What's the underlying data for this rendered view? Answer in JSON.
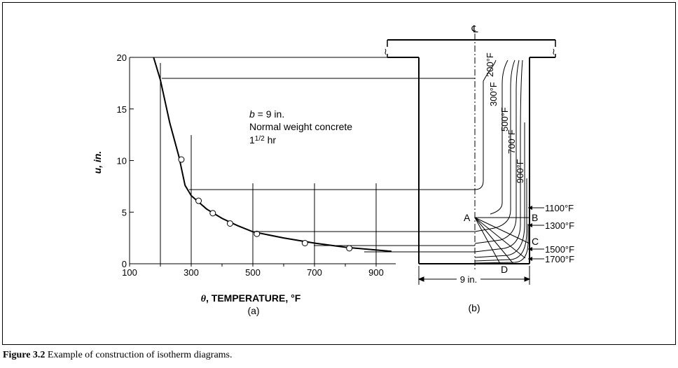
{
  "chart_data": {
    "type": "scatter",
    "title": "",
    "xlabel_symbol": "θ",
    "xlabel": ", TEMPERATURE, °F",
    "ylabel": "u, in.",
    "xlim": [
      100,
      900
    ],
    "ylim": [
      0,
      20
    ],
    "xticks": [
      "100",
      "300",
      "500",
      "700",
      "900"
    ],
    "yticks": [
      "0",
      "5",
      "10",
      "15",
      "20"
    ],
    "points": [
      {
        "x": 268,
        "y": 10.1
      },
      {
        "x": 324,
        "y": 6.1
      },
      {
        "x": 370,
        "y": 4.9
      },
      {
        "x": 426,
        "y": 3.9
      },
      {
        "x": 513,
        "y": 2.9
      },
      {
        "x": 669,
        "y": 2.0
      },
      {
        "x": 813,
        "y": 1.5
      }
    ],
    "curve": [
      {
        "x": 178,
        "y": 20
      },
      {
        "x": 200,
        "y": 17.8
      },
      {
        "x": 230,
        "y": 13.7
      },
      {
        "x": 260,
        "y": 10.4
      },
      {
        "x": 280,
        "y": 7.6
      },
      {
        "x": 300,
        "y": 6.6
      },
      {
        "x": 350,
        "y": 5.3
      },
      {
        "x": 400,
        "y": 4.4
      },
      {
        "x": 450,
        "y": 3.7
      },
      {
        "x": 500,
        "y": 3.1
      },
      {
        "x": 600,
        "y": 2.5
      },
      {
        "x": 700,
        "y": 2.0
      },
      {
        "x": 800,
        "y": 1.6
      },
      {
        "x": 950,
        "y": 1.2
      }
    ],
    "vertical_guides": [
      200,
      300,
      500,
      700,
      900
    ],
    "annotation": {
      "b_var": "b",
      "b_value": " = 9 in.",
      "line2": "Normal weight concrete",
      "line3_whole": "1",
      "line3_frac": "1/2",
      "line3_unit": " hr"
    },
    "panel_label": "(a)"
  },
  "section": {
    "centerline_symbol": "℄",
    "width_label": "9 in.",
    "panel_label": "(b)",
    "points": [
      "A",
      "B",
      "C",
      "D"
    ],
    "isotherms_vertical": [
      "200°F",
      "300°F",
      "500°F",
      "700°F",
      "900°F"
    ],
    "isotherms_horizontal": [
      "1100°F",
      "1300°F",
      "1500°F",
      "1700°F"
    ],
    "break_symbol": "≀"
  },
  "caption": {
    "label": "Figure 3.2",
    "text": " Example of construction of isotherm diagrams."
  }
}
